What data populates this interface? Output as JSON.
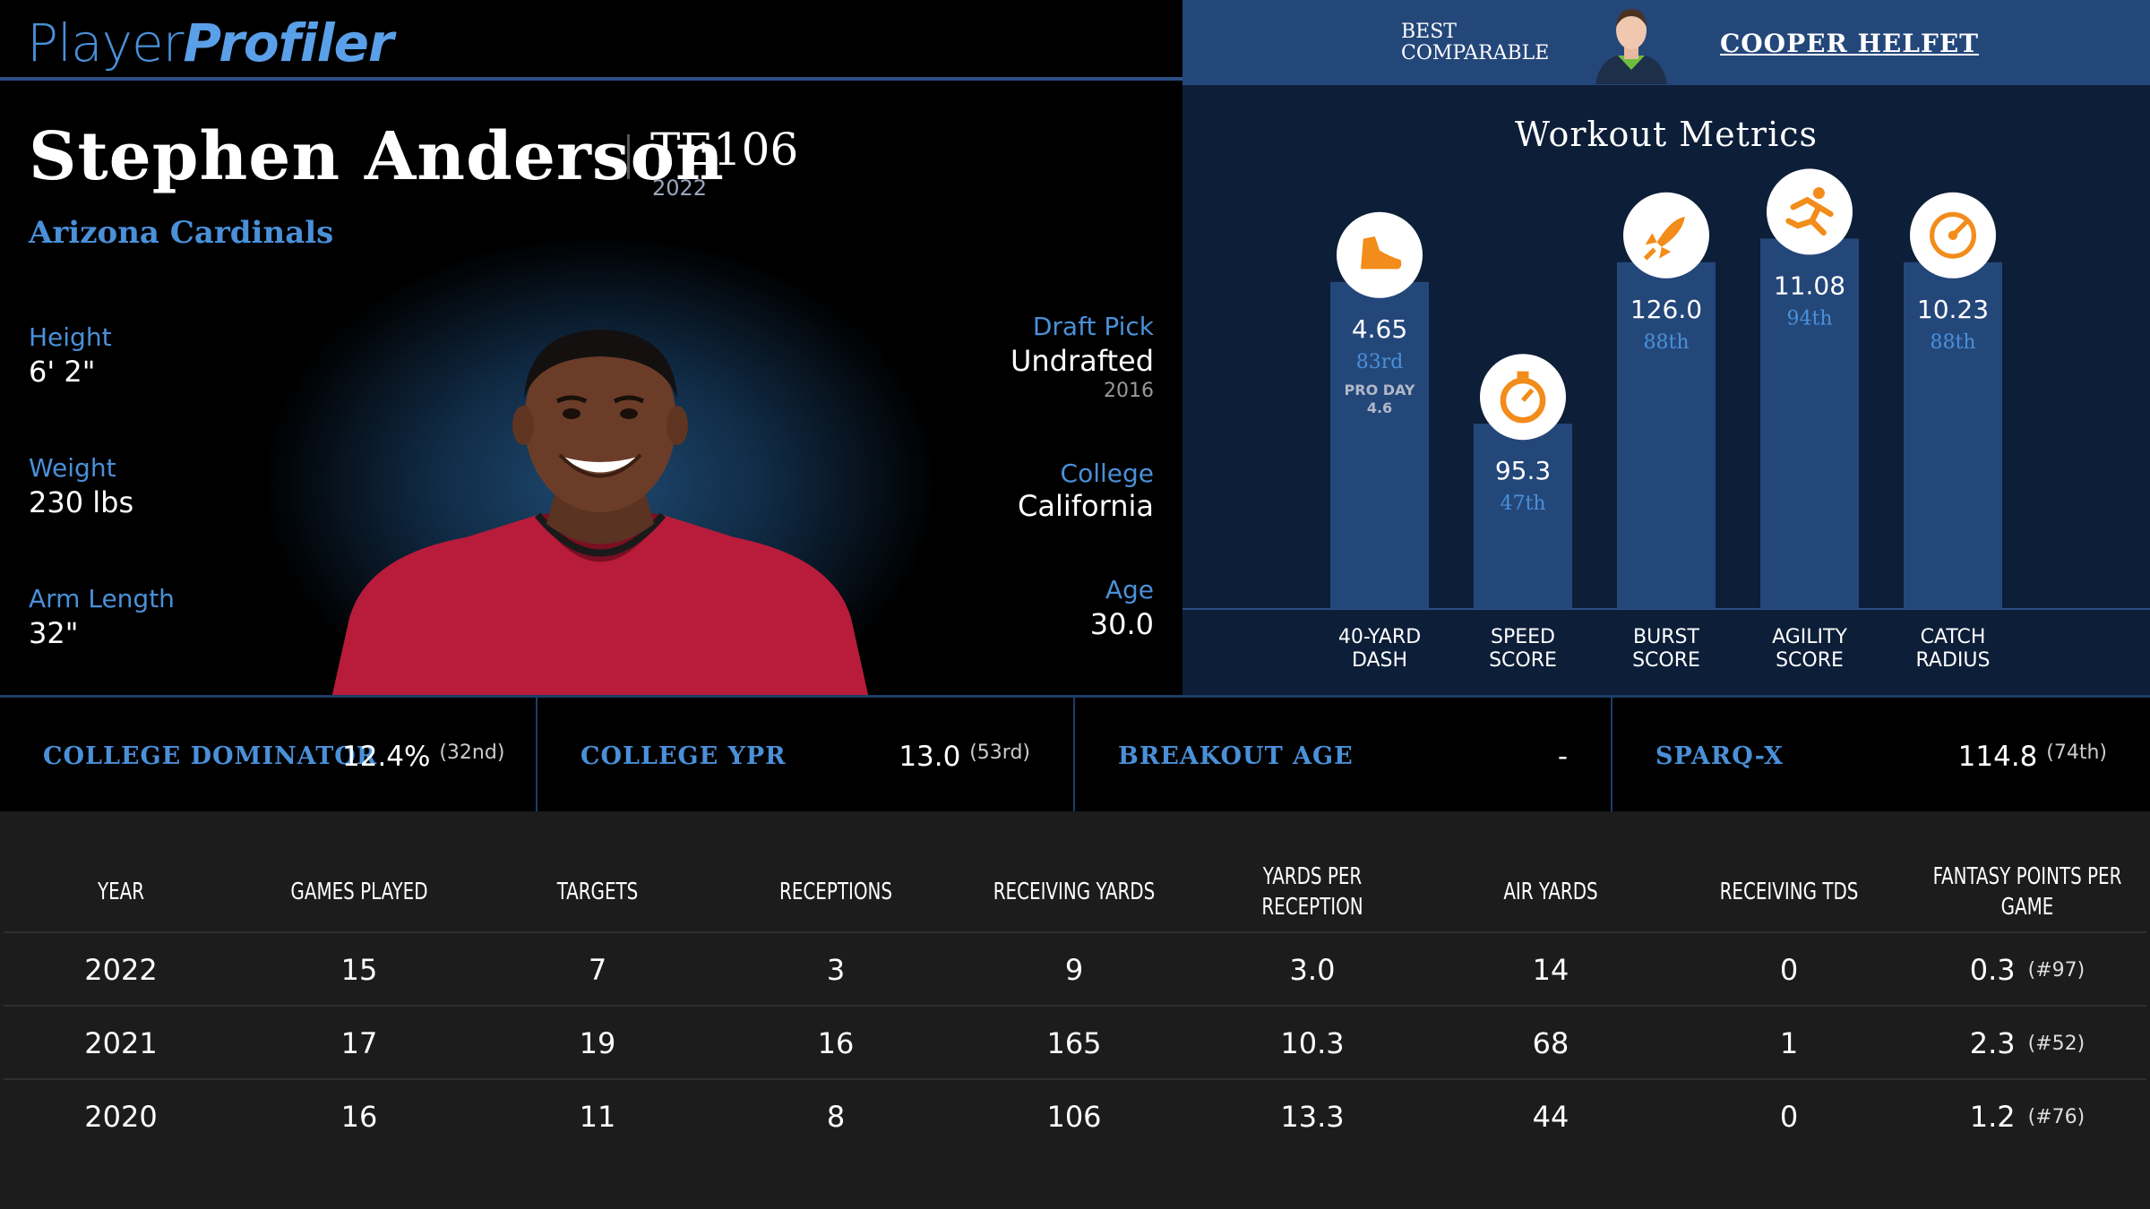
{
  "brand": {
    "part1": "Player",
    "part2": "Profiler"
  },
  "player": {
    "name": "Stephen Anderson",
    "position_rank": "TE106",
    "year": "2022",
    "team": "Arizona Cardinals"
  },
  "bio": {
    "height_label": "Height",
    "height": "6' 2\"",
    "weight_label": "Weight",
    "weight": "230 lbs",
    "arm_label": "Arm Length",
    "arm": "32\"",
    "draft_label": "Draft Pick",
    "draft": "Undrafted",
    "draft_year": "2016",
    "college_label": "College",
    "college": "California",
    "age_label": "Age",
    "age": "30.0"
  },
  "comparable": {
    "label_line1": "BEST",
    "label_line2": "COMPARABLE",
    "name": "COOPER HELFET"
  },
  "workout": {
    "title": "Workout Metrics",
    "metrics": [
      {
        "value": "4.65",
        "pct": "83rd",
        "extra1": "PRO DAY",
        "extra2": "4.6",
        "label1": "40-YARD",
        "label2": "DASH",
        "icon": "shoe-icon",
        "bar": 0.83
      },
      {
        "value": "95.3",
        "pct": "47th",
        "extra1": "",
        "extra2": "",
        "label1": "SPEED",
        "label2": "SCORE",
        "icon": "stopwatch-icon",
        "bar": 0.47
      },
      {
        "value": "126.0",
        "pct": "88th",
        "extra1": "",
        "extra2": "",
        "label1": "BURST",
        "label2": "SCORE",
        "icon": "rocket-icon",
        "bar": 0.88
      },
      {
        "value": "11.08",
        "pct": "94th",
        "extra1": "",
        "extra2": "",
        "label1": "AGILITY",
        "label2": "SCORE",
        "icon": "runner-icon",
        "bar": 0.94
      },
      {
        "value": "10.23",
        "pct": "88th",
        "extra1": "",
        "extra2": "",
        "label1": "CATCH",
        "label2": "RADIUS",
        "icon": "target-icon",
        "bar": 0.88
      }
    ]
  },
  "metrics_strip": [
    {
      "label": "COLLEGE DOMINATOR",
      "value": "12.4%",
      "rank": "(32nd)"
    },
    {
      "label": "COLLEGE YPR",
      "value": "13.0",
      "rank": "(53rd)"
    },
    {
      "label": "BREAKOUT AGE",
      "value": "-",
      "rank": ""
    },
    {
      "label": "SPARQ-X",
      "value": "114.8",
      "rank": "(74th)"
    }
  ],
  "table": {
    "headers": [
      "YEAR",
      "GAMES PLAYED",
      "TARGETS",
      "RECEPTIONS",
      "RECEIVING YARDS",
      "YARDS PER RECEPTION",
      "AIR YARDS",
      "RECEIVING TDS",
      "FANTASY POINTS PER GAME"
    ],
    "rows": [
      [
        "2022",
        "15",
        "7",
        "3",
        "9",
        "3.0",
        "14",
        "0",
        "0.3",
        "(#97)"
      ],
      [
        "2021",
        "17",
        "19",
        "16",
        "165",
        "10.3",
        "68",
        "1",
        "2.3",
        "(#52)"
      ],
      [
        "2020",
        "16",
        "11",
        "8",
        "106",
        "13.3",
        "44",
        "0",
        "1.2",
        "(#76)"
      ]
    ]
  },
  "colors": {
    "accent": "#4a90d9",
    "bar": "#24477a",
    "icon": "#f28c1a",
    "navy": "#0d1e38"
  }
}
